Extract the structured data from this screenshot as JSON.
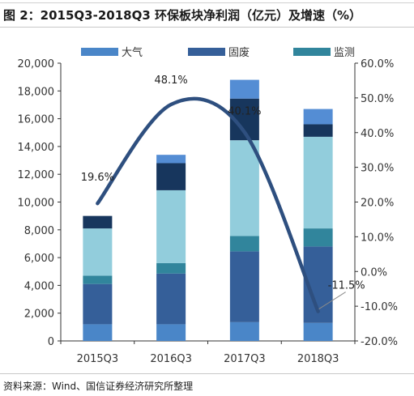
{
  "title": "图 2：2015Q3-2018Q3 环保板块净利润（亿元）及增速（%）",
  "source": "资料来源：Wind、国信证券经济研究所整理",
  "chart_data": {
    "type": "bar",
    "stacked": true,
    "categories": [
      "2015Q3",
      "2016Q3",
      "2017Q3",
      "2018Q3"
    ],
    "series": [
      {
        "name": "大气",
        "color": "#4a86c8",
        "in_legend": true,
        "values": [
          1200,
          1200,
          1350,
          1300
        ]
      },
      {
        "name": "固废",
        "color": "#355f99",
        "in_legend": true,
        "values": [
          2900,
          3650,
          5100,
          5500
        ]
      },
      {
        "name": "监测",
        "color": "#31859c",
        "in_legend": true,
        "values": [
          600,
          750,
          1100,
          1300
        ]
      },
      {
        "name": "",
        "color": "#92cddc",
        "in_legend": false,
        "values": [
          3400,
          5250,
          6900,
          6600
        ]
      },
      {
        "name": "",
        "color": "#17365d",
        "in_legend": false,
        "values": [
          900,
          1950,
          3000,
          900
        ]
      },
      {
        "name": "",
        "color": "#548dd4",
        "in_legend": false,
        "values": [
          0,
          600,
          1350,
          1100
        ]
      }
    ],
    "line": {
      "color": "#2e4f7f",
      "values": [
        19.6,
        48.1,
        40.1,
        -11.5
      ],
      "labels": [
        "19.6%",
        "48.1%",
        "40.1%",
        "-11.5%"
      ]
    },
    "y_left": {
      "min": 0,
      "max": 20000,
      "step": 2000,
      "ticks": [
        "0",
        "2,000",
        "4,000",
        "6,000",
        "8,000",
        "10,000",
        "12,000",
        "14,000",
        "16,000",
        "18,000",
        "20,000"
      ]
    },
    "y_right": {
      "min": -20,
      "max": 60,
      "step": 10,
      "ticks": [
        "-20.0%",
        "-10.0%",
        "0.0%",
        "10.0%",
        "20.0%",
        "30.0%",
        "40.0%",
        "50.0%",
        "60.0%"
      ]
    },
    "legend_position": "top",
    "grid": false
  }
}
